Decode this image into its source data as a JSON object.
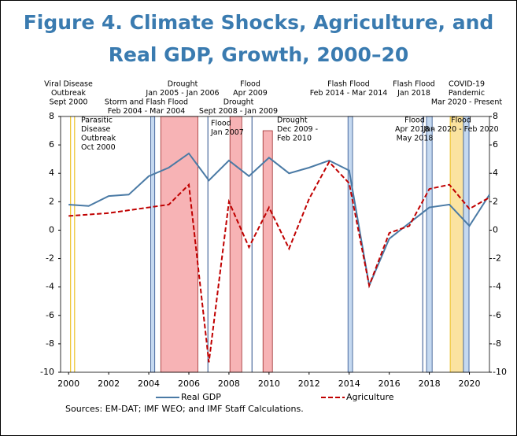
{
  "chart_data": {
    "type": "line",
    "title": "Figure 4. Climate Shocks, Agriculture, and Real GDP, Growth, 2000–20",
    "x": [
      2000,
      2001,
      2002,
      2003,
      2004,
      2005,
      2006,
      2007,
      2008,
      2009,
      2010,
      2011,
      2012,
      2013,
      2014,
      2015,
      2016,
      2017,
      2018,
      2019,
      2020,
      2021
    ],
    "series": [
      {
        "name": "Real GDP",
        "color": "#4a7aa5",
        "dashed": false,
        "values": [
          1.8,
          1.7,
          2.4,
          2.5,
          3.8,
          4.4,
          5.4,
          3.5,
          4.9,
          3.8,
          5.1,
          4.0,
          4.4,
          4.9,
          4.2,
          -3.9,
          -0.6,
          0.5,
          1.6,
          1.8,
          0.3,
          2.5
        ]
      },
      {
        "name": "Agriculture",
        "color": "#c00000",
        "dashed": true,
        "values": [
          1.0,
          1.1,
          1.2,
          1.4,
          1.6,
          1.8,
          3.2,
          -9.3,
          2.0,
          -1.2,
          1.6,
          -1.3,
          2.2,
          4.8,
          3.3,
          -3.9,
          -0.2,
          0.3,
          2.9,
          3.2,
          1.5,
          2.3
        ]
      }
    ],
    "events": [
      {
        "lines": [
          "Viral Disease",
          "Outbreak",
          "Sept 2000"
        ],
        "x0": 2000.1,
        "x1": 2000.1,
        "top": 8,
        "kind": "yellow"
      },
      {
        "lines": [
          "Parasitic",
          "Disease",
          "Outbreak",
          "Oct 2000"
        ],
        "x0": 2000.3,
        "x1": 2000.3,
        "top": 8,
        "kind": "yellow"
      },
      {
        "lines": [
          "Storm and Flash Flood",
          "Feb 2004 - Mar 2004"
        ],
        "x0": 2004.1,
        "x1": 2004.3,
        "top": 8,
        "kind": "blue"
      },
      {
        "lines": [
          "Drought",
          "Jan 2005 - Jan 2006"
        ],
        "x0": 2004.6,
        "x1": 2006.45,
        "top": 8,
        "kind": "pink"
      },
      {
        "lines": [
          "Flood",
          "Jan 2007"
        ],
        "x0": 2006.95,
        "x1": 2006.95,
        "top": 8,
        "kind": "blue"
      },
      {
        "lines": [
          "Drought",
          "Sept 2008 - Jan 2009"
        ],
        "x0": 2008.05,
        "x1": 2008.64,
        "top": 8,
        "kind": "pink"
      },
      {
        "lines": [
          "Flood",
          "Apr 2009"
        ],
        "x0": 2009.15,
        "x1": 2009.15,
        "top": 8,
        "kind": "blue"
      },
      {
        "lines": [
          "Drought",
          "Dec 2009 -",
          "Feb 2010"
        ],
        "x0": 2009.7,
        "x1": 2010.17,
        "top": 7,
        "kind": "pink"
      },
      {
        "lines": [
          "Flash Flood",
          "Feb 2014 - Mar 2014"
        ],
        "x0": 2013.94,
        "x1": 2014.17,
        "top": 8,
        "kind": "blue"
      },
      {
        "lines": [
          "Flood",
          "Apr 2018 -",
          "May 2018"
        ],
        "x0": 2017.67,
        "x1": 2017.67,
        "top": 8,
        "kind": "blue"
      },
      {
        "lines": [
          "Flash Flood",
          "Jan 2018"
        ],
        "x0": 2017.86,
        "x1": 2018.14,
        "top": 8,
        "kind": "blue"
      },
      {
        "lines": [
          "COVID-19",
          "Pandemic",
          "Mar 2020 - Present"
        ],
        "x0": 2019.04,
        "x1": 2019.75,
        "top": 8,
        "kind": "yellow"
      },
      {
        "lines": [
          "Flood",
          "Jan 2020 - Feb 2020"
        ],
        "x0": 2019.7,
        "x1": 2019.98,
        "top": 8,
        "kind": "blue"
      }
    ],
    "xlim": [
      1999.6,
      2021
    ],
    "xticks": [
      2000,
      2002,
      2004,
      2006,
      2008,
      2010,
      2012,
      2014,
      2016,
      2018,
      2020
    ],
    "ylim": [
      -10,
      8
    ],
    "yticks": [
      -10,
      -8,
      -6,
      -4,
      -2,
      0,
      2,
      4,
      6,
      8
    ],
    "source": "Sources: EM-DAT; IMF WEO; and IMF Staff Calculations."
  }
}
